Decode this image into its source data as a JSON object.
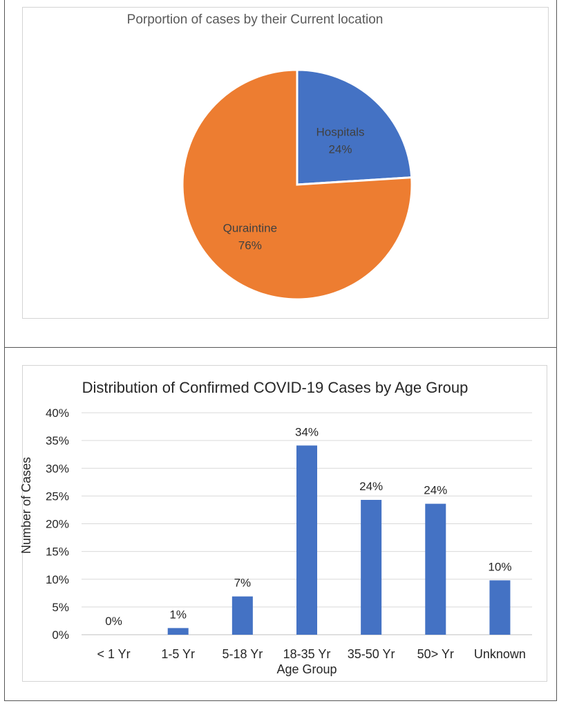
{
  "chart_data": [
    {
      "type": "pie",
      "title": "Porportion of cases by their Current location",
      "slices": [
        {
          "label": "Hospitals",
          "value": 24,
          "value_label": "24%",
          "color": "#4472c4"
        },
        {
          "label": "Quraintine",
          "value": 76,
          "value_label": "76%",
          "color": "#ed7d31"
        }
      ]
    },
    {
      "type": "bar",
      "title": "Distribution of Confirmed COVID-19 Cases by Age Group",
      "xlabel": "Age Group",
      "ylabel": "Number of Cases",
      "categories": [
        "< 1 Yr",
        "1-5 Yr",
        "5-18 Yr",
        "18-35 Yr",
        "35-50 Yr",
        "50> Yr",
        "Unknown"
      ],
      "values": [
        0,
        1.2,
        6.9,
        34.1,
        24.3,
        23.6,
        9.8
      ],
      "data_labels": [
        "0%",
        "1%",
        "7%",
        "34%",
        "24%",
        "24%",
        "10%"
      ],
      "yticks": [
        "0%",
        "5%",
        "10%",
        "15%",
        "20%",
        "25%",
        "30%",
        "35%",
        "40%"
      ],
      "ylim": [
        0,
        40
      ],
      "color": "#4472c4",
      "grid": true
    }
  ]
}
